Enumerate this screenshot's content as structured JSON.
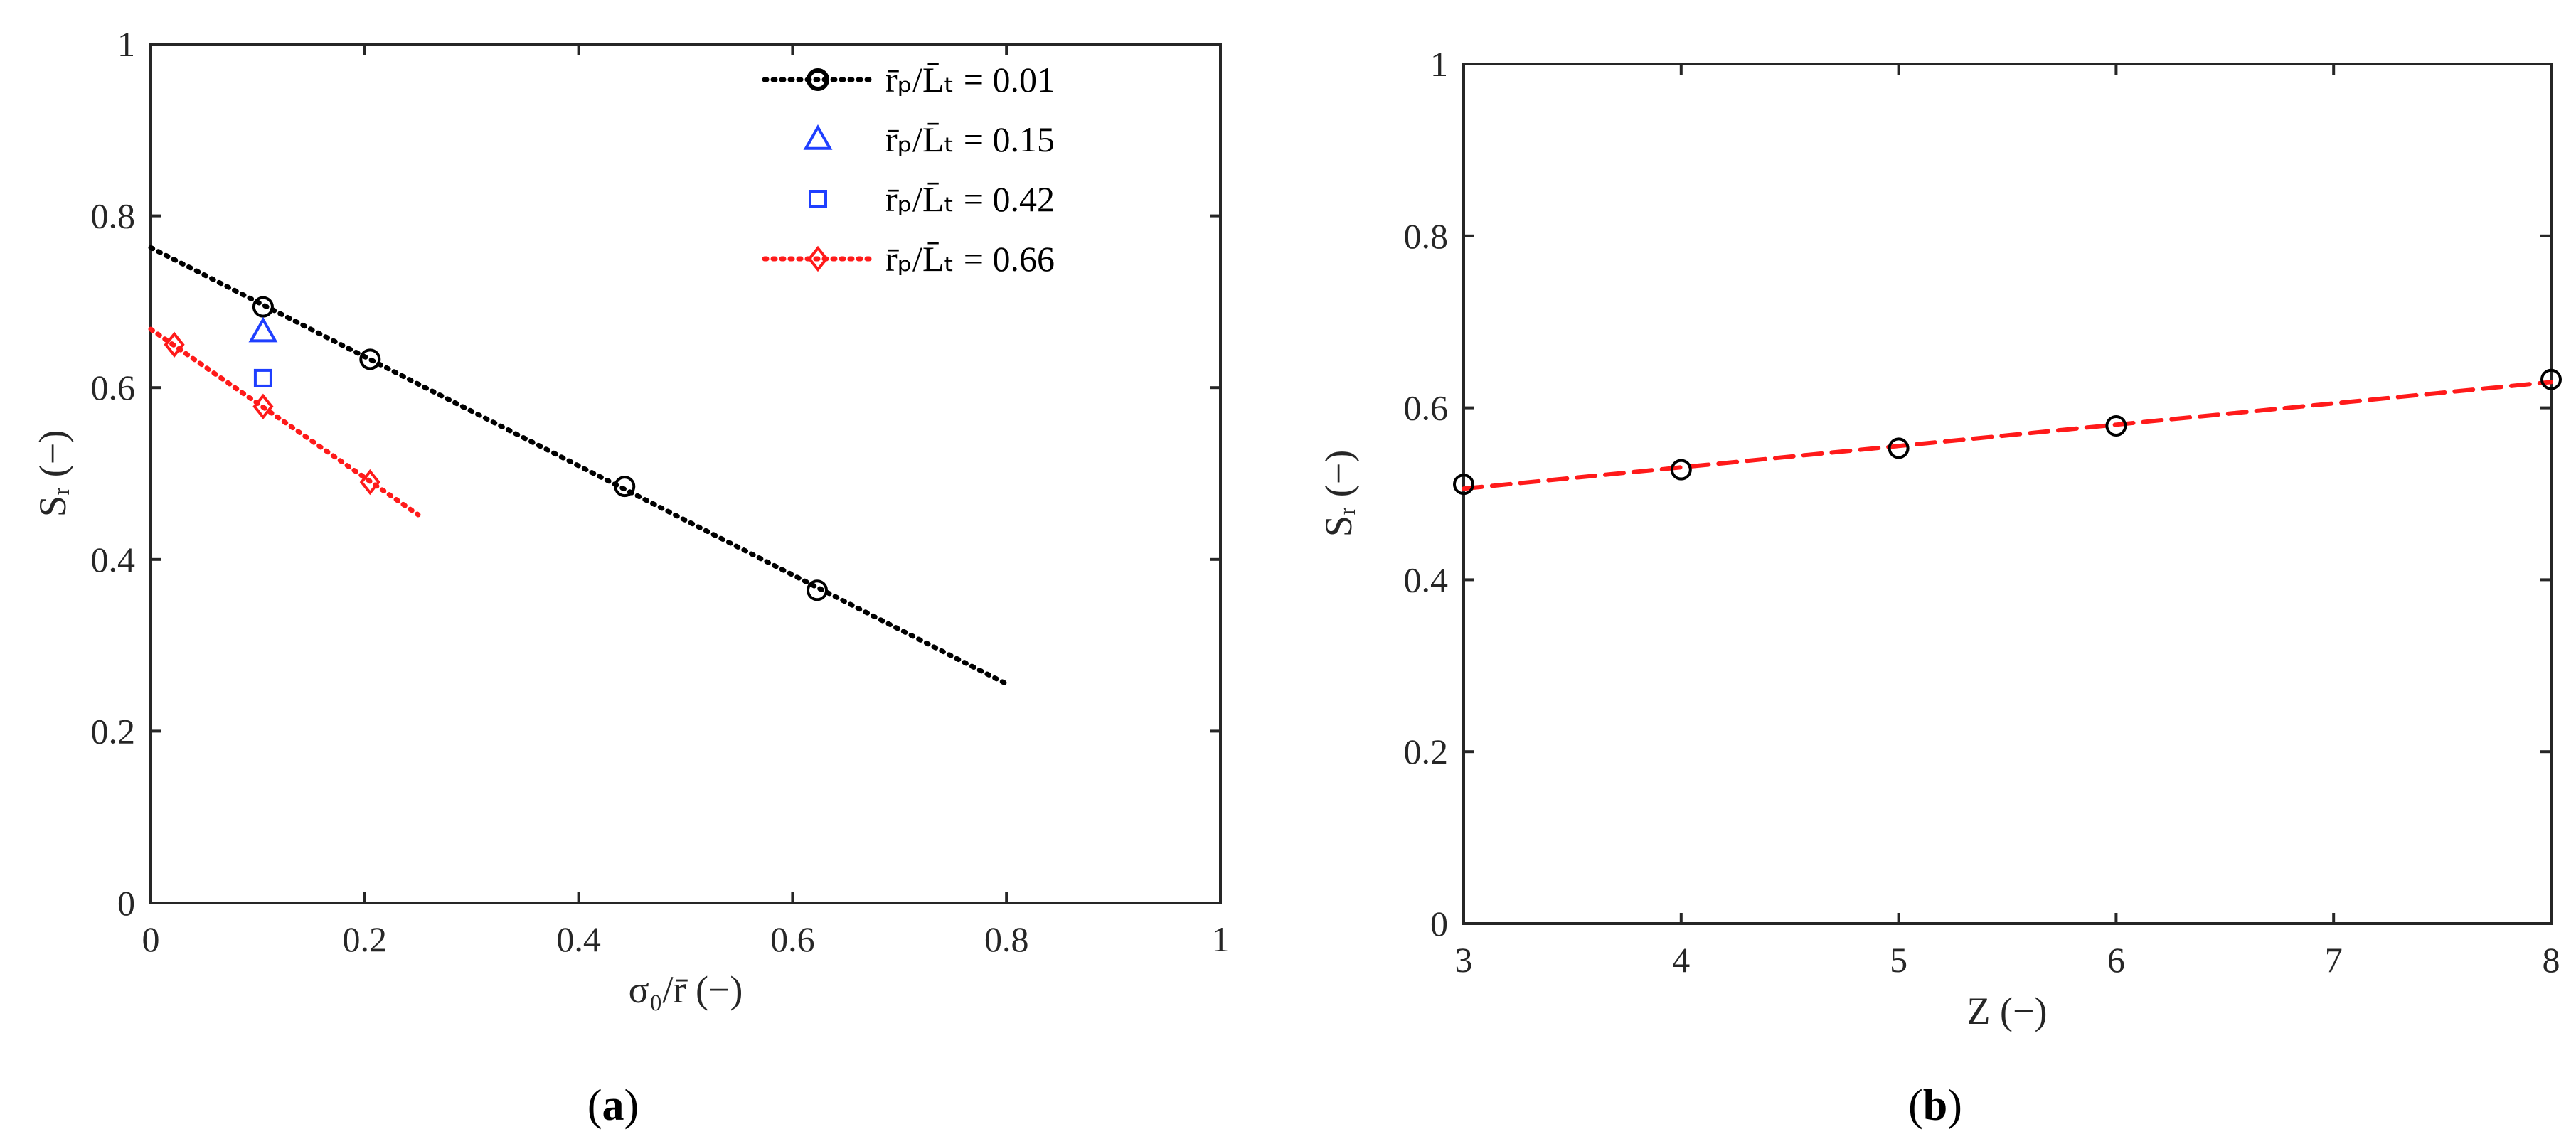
{
  "chart_data": [
    {
      "panel": "(a)",
      "panel_letter": "a",
      "type": "line",
      "xlabel": "σ₀/r̄ (−)",
      "ylabel": "Sᵣ (−)",
      "xlim": [
        0,
        1
      ],
      "ylim": [
        0,
        1
      ],
      "xticks": [
        "0",
        "0.2",
        "0.4",
        "0.6",
        "0.8",
        "1"
      ],
      "yticks": [
        "0",
        "0.2",
        "0.4",
        "0.6",
        "0.8",
        "1"
      ],
      "grid": false,
      "legend_position": "top-right",
      "series": [
        {
          "name": "r̄ₚ/L̄ₜ = 0.01",
          "color": "#000000",
          "marker": "circle",
          "line": "dotted",
          "points": [
            [
              0.105,
              0.694
            ],
            [
              0.205,
              0.633
            ],
            [
              0.443,
              0.485
            ],
            [
              0.623,
              0.364
            ]
          ],
          "fit": [
            [
              0,
              0.763
            ],
            [
              0.8,
              0.255
            ]
          ]
        },
        {
          "name": "r̄ₚ/L̄ₜ = 0.15",
          "color": "#1f3fff",
          "marker": "triangle",
          "line": "none",
          "points": [
            [
              0.105,
              0.665
            ]
          ]
        },
        {
          "name": "r̄ₚ/L̄ₜ = 0.42",
          "color": "#1f3fff",
          "marker": "square",
          "line": "none",
          "points": [
            [
              0.105,
              0.611
            ]
          ]
        },
        {
          "name": "r̄ₚ/L̄ₜ = 0.66",
          "color": "#ff1a1a",
          "marker": "diamond",
          "line": "dotted",
          "points": [
            [
              0.022,
              0.65
            ],
            [
              0.105,
              0.578
            ],
            [
              0.205,
              0.49
            ]
          ],
          "fit": [
            [
              0,
              0.668
            ],
            [
              0.25,
              0.452
            ]
          ]
        }
      ]
    },
    {
      "panel": "(b)",
      "panel_letter": "b",
      "type": "line",
      "xlabel": "Z (−)",
      "ylabel": "Sᵣ (−)",
      "xlim": [
        3,
        8
      ],
      "ylim": [
        0,
        1
      ],
      "xticks": [
        "3",
        "4",
        "5",
        "6",
        "7",
        "8"
      ],
      "yticks": [
        "0",
        "0.2",
        "0.4",
        "0.6",
        "0.8",
        "1"
      ],
      "grid": false,
      "series": [
        {
          "name": "",
          "color": "#000000",
          "marker": "circle",
          "line": "none",
          "points": [
            [
              3,
              0.511
            ],
            [
              4,
              0.528
            ],
            [
              5,
              0.553
            ],
            [
              6,
              0.579
            ],
            [
              8,
              0.633
            ]
          ]
        },
        {
          "name": "",
          "color": "#ff1a1a",
          "marker": "none",
          "line": "dashed",
          "fit": [
            [
              3,
              0.506
            ],
            [
              8,
              0.63
            ]
          ]
        }
      ]
    }
  ]
}
